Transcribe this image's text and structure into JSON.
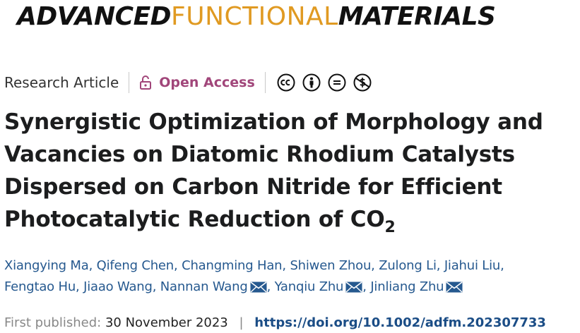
{
  "journal": {
    "part1": "ADVANCED",
    "part2": "FUNCTIONAL",
    "part3": "MATERIALS"
  },
  "meta": {
    "article_type": "Research Article",
    "open_access": "Open Access"
  },
  "license_icons": [
    "cc-icon",
    "by-icon",
    "nd-icon",
    "nc-icon"
  ],
  "title": {
    "main": "Synergistic Optimization of Morphology and Vacancies on Diatomic Rhodium Catalysts Dispersed on Carbon Nitride for Efficient Photocatalytic Reduction of CO",
    "subscript": "2"
  },
  "authors": [
    "Xiangying Ma",
    "Qifeng Chen",
    "Changming Han",
    "Shiwen Zhou",
    "Zulong Li",
    "Jiahui Liu",
    "Fengtao Hu",
    "Jiaao Wang",
    "Nannan Wang",
    "Yanqiu Zhu",
    "Jinliang Zhu"
  ],
  "publication": {
    "label": "First published:",
    "date": "30 November 2023",
    "separator": "|",
    "doi": "https://doi.org/10.1002/adfm.202307733"
  },
  "colors": {
    "accent_orange": "#e09a22",
    "open_access": "#a1467a",
    "author_link": "#26598f",
    "doi_link": "#1b4d86"
  }
}
